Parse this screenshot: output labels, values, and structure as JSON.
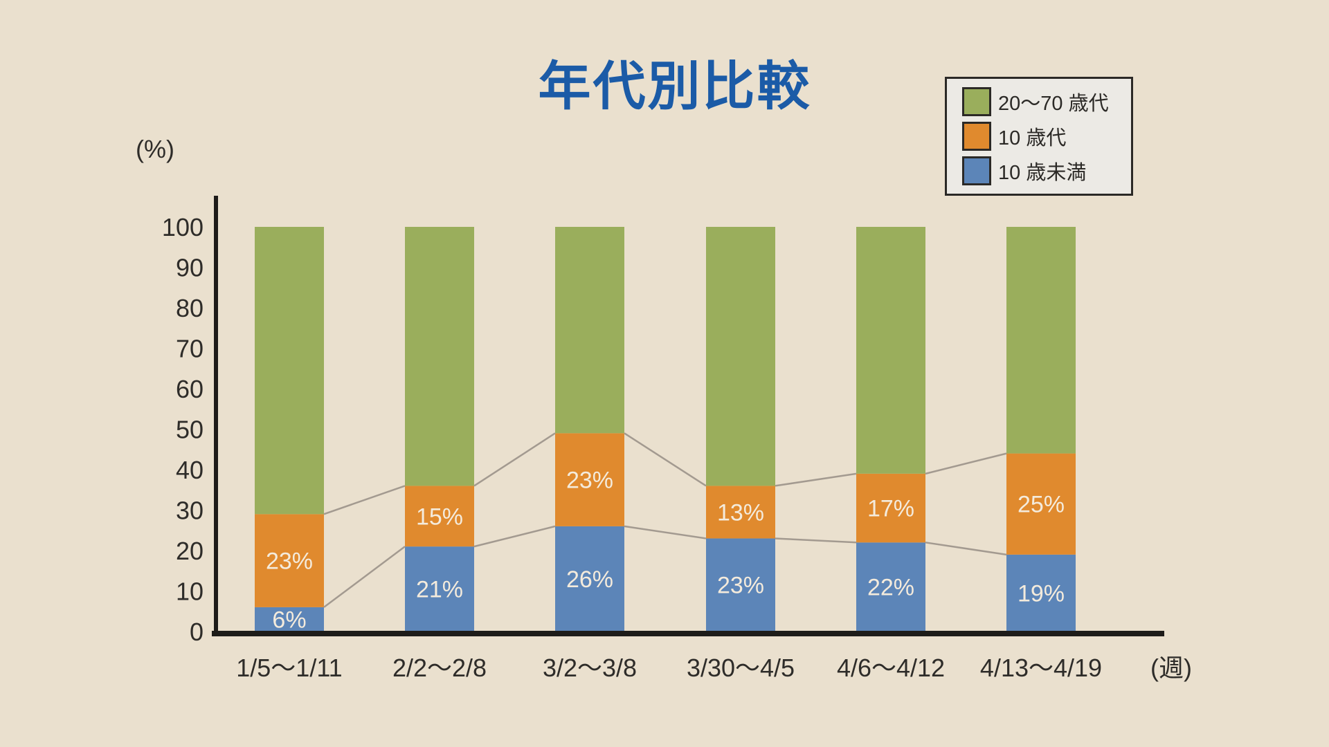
{
  "page": {
    "background": "#EAE0CE"
  },
  "title": {
    "text": "年代別比較",
    "color": "#1B5BA7"
  },
  "legend": {
    "position": "top-right",
    "items": [
      {
        "label": "20～70 歳代",
        "color": "#9AAE5C"
      },
      {
        "label": "10 歳代",
        "color": "#E08A2E"
      },
      {
        "label": "10 歳未満",
        "color": "#5C85B8"
      }
    ]
  },
  "chart_data": {
    "type": "bar",
    "stacked": true,
    "title": "年代別比較",
    "xlabel": "(週)",
    "ylabel": "(%)",
    "ylim": [
      0,
      100
    ],
    "yticks": [
      0,
      10,
      20,
      30,
      40,
      50,
      60,
      70,
      80,
      90,
      100
    ],
    "grid": false,
    "legend_position": "top-right",
    "categories": [
      "1/5～1/11",
      "2/2～2/8",
      "3/2～3/8",
      "3/30～4/5",
      "4/6～4/12",
      "4/13～4/19"
    ],
    "series": [
      {
        "name": "10歳未満",
        "color": "#5C85B8",
        "values": [
          6,
          21,
          26,
          23,
          22,
          19
        ],
        "labels": [
          "6%",
          "21%",
          "26%",
          "23%",
          "22%",
          "19%"
        ]
      },
      {
        "name": "10歳代",
        "color": "#E08A2E",
        "values": [
          23,
          15,
          23,
          13,
          17,
          25
        ],
        "labels": [
          "23%",
          "15%",
          "23%",
          "13%",
          "17%",
          "25%"
        ]
      },
      {
        "name": "20～70歳代",
        "color": "#9AAE5C",
        "values": [
          71,
          64,
          51,
          64,
          61,
          56
        ],
        "labels": null
      }
    ],
    "connector_lines": {
      "present": true,
      "color": "#A39A90",
      "along_boundaries": [
        "top of 10歳未満",
        "top of 10歳代 (cumulative)"
      ]
    },
    "value_label_color": "#F4EBDC",
    "axis_color": "#1E1C19",
    "tick_label_color": "#2E2C29"
  }
}
